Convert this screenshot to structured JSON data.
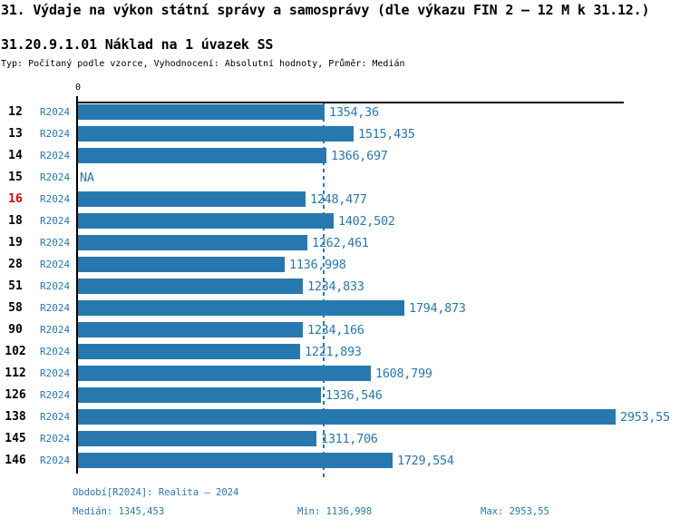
{
  "header": {
    "title": "31. Výdaje na výkon státní správy a samosprávy (dle výkazu FIN 2 – 12 M k 31.12.)",
    "subtitle": "31.20.9.1.01 Náklad na 1 úvazek SS",
    "type_line": "Typ: Počítaný podle vzorce, Vyhodnocení: Absolutní hodnoty, Průměr: Medián"
  },
  "chart_data": {
    "type": "bar",
    "orientation": "horizontal",
    "x_axis": {
      "origin_label": "0",
      "min": 0
    },
    "median_value": 1345.453,
    "legend": "none",
    "rows": [
      {
        "id": "12",
        "period": "R2024",
        "value": 1354.36,
        "value_label": "1354,36",
        "highlight": false
      },
      {
        "id": "13",
        "period": "R2024",
        "value": 1515.435,
        "value_label": "1515,435",
        "highlight": false
      },
      {
        "id": "14",
        "period": "R2024",
        "value": 1366.697,
        "value_label": "1366,697",
        "highlight": false
      },
      {
        "id": "15",
        "period": "R2024",
        "value": null,
        "value_label": "NA",
        "highlight": false
      },
      {
        "id": "16",
        "period": "R2024",
        "value": 1248.477,
        "value_label": "1248,477",
        "highlight": true
      },
      {
        "id": "18",
        "period": "R2024",
        "value": 1402.502,
        "value_label": "1402,502",
        "highlight": false
      },
      {
        "id": "19",
        "period": "R2024",
        "value": 1262.461,
        "value_label": "1262,461",
        "highlight": false
      },
      {
        "id": "28",
        "period": "R2024",
        "value": 1136.998,
        "value_label": "1136,998",
        "highlight": false
      },
      {
        "id": "51",
        "period": "R2024",
        "value": 1234.833,
        "value_label": "1234,833",
        "highlight": false
      },
      {
        "id": "58",
        "period": "R2024",
        "value": 1794.873,
        "value_label": "1794,873",
        "highlight": false
      },
      {
        "id": "90",
        "period": "R2024",
        "value": 1234.166,
        "value_label": "1234,166",
        "highlight": false
      },
      {
        "id": "102",
        "period": "R2024",
        "value": 1221.893,
        "value_label": "1221,893",
        "highlight": false
      },
      {
        "id": "112",
        "period": "R2024",
        "value": 1608.799,
        "value_label": "1608,799",
        "highlight": false
      },
      {
        "id": "126",
        "period": "R2024",
        "value": 1336.546,
        "value_label": "1336,546",
        "highlight": false
      },
      {
        "id": "138",
        "period": "R2024",
        "value": 2953.55,
        "value_label": "2953,55",
        "highlight": false
      },
      {
        "id": "145",
        "period": "R2024",
        "value": 1311.706,
        "value_label": "1311,706",
        "highlight": false
      },
      {
        "id": "146",
        "period": "R2024",
        "value": 1729.554,
        "value_label": "1729,554",
        "highlight": false
      }
    ],
    "colors": {
      "bar": "#2878b0",
      "blue_text": "#2878b0",
      "highlight_red": "#dd0000",
      "axis_black": "#000000"
    }
  },
  "footer": {
    "period_info": "Období[R2024]: Realita – 2024",
    "median_label": "Medián: 1345,453",
    "min_label": "Min: 1136,998",
    "max_label": "Max: 2953,55"
  }
}
